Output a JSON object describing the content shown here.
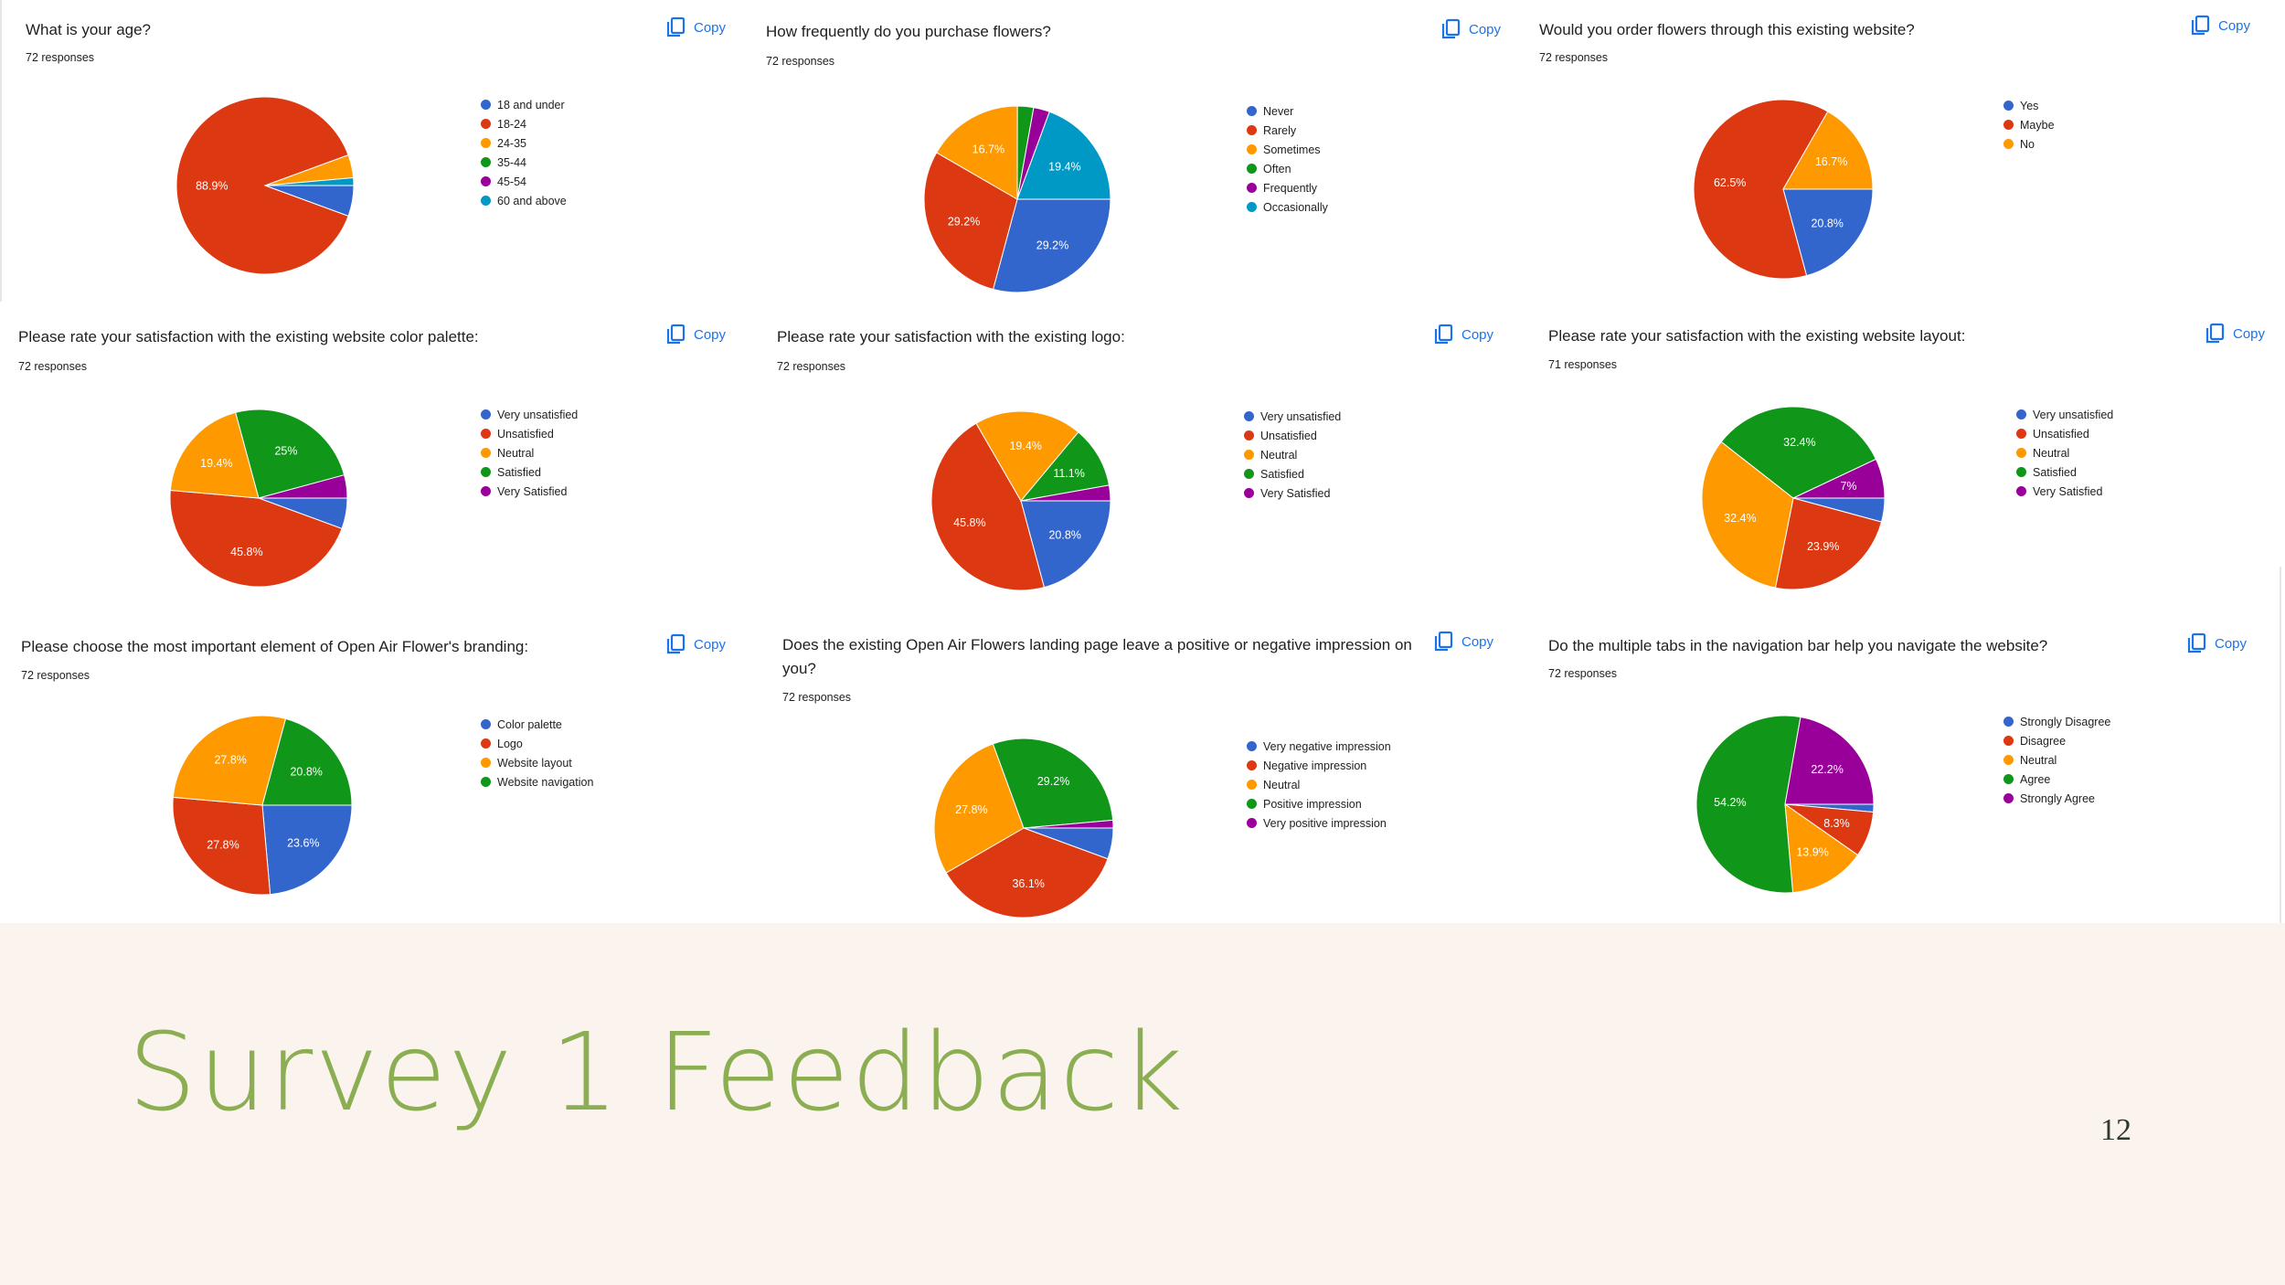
{
  "colors": {
    "blue": "#3366cc",
    "red": "#dc3912",
    "orange": "#ff9900",
    "green": "#109618",
    "purple": "#990099",
    "cyan": "#0099c6",
    "copy_blue": "#1a73e8",
    "title_green": "#8cae53",
    "page_bg": "#fbf4ee"
  },
  "copy_label": "Copy",
  "slide": {
    "title": "Survey 1 Feedback",
    "page_number": "12"
  },
  "chart_data": [
    {
      "type": "pie",
      "title": "What is your age?",
      "responses": "72 responses",
      "slices": [
        {
          "label": "18 and under",
          "value": 5.6,
          "color": "#3366cc"
        },
        {
          "label": "18-24",
          "value": 88.9,
          "color": "#dc3912",
          "data_label": "88.9%"
        },
        {
          "label": "24-35",
          "value": 4.2,
          "color": "#ff9900"
        },
        {
          "label": "35-44",
          "value": 0,
          "color": "#109618"
        },
        {
          "label": "45-54",
          "value": 0,
          "color": "#990099"
        },
        {
          "label": "60 and above",
          "value": 1.4,
          "color": "#0099c6"
        }
      ]
    },
    {
      "type": "pie",
      "title": "How frequently do you purchase flowers?",
      "responses": "72 responses",
      "slices": [
        {
          "label": "Never",
          "value": 29.2,
          "color": "#3366cc",
          "data_label": "29.2%"
        },
        {
          "label": "Rarely",
          "value": 29.2,
          "color": "#dc3912",
          "data_label": "29.2%"
        },
        {
          "label": "Sometimes",
          "value": 16.7,
          "color": "#ff9900",
          "data_label": "16.7%"
        },
        {
          "label": "Often",
          "value": 2.8,
          "color": "#109618"
        },
        {
          "label": "Frequently",
          "value": 2.8,
          "color": "#990099"
        },
        {
          "label": "Occasionally",
          "value": 19.4,
          "color": "#0099c6",
          "data_label": "19.4%"
        }
      ]
    },
    {
      "type": "pie",
      "title": "Would you order flowers through this existing website?",
      "responses": "72 responses",
      "slices": [
        {
          "label": "Yes",
          "value": 20.8,
          "color": "#3366cc",
          "data_label": "20.8%"
        },
        {
          "label": "Maybe",
          "value": 62.5,
          "color": "#dc3912",
          "data_label": "62.5%"
        },
        {
          "label": "No",
          "value": 16.7,
          "color": "#ff9900",
          "data_label": "16.7%"
        }
      ]
    },
    {
      "type": "pie",
      "title": "Please rate your satisfaction with the existing website color palette:",
      "responses": "72 responses",
      "slices": [
        {
          "label": "Very unsatisfied",
          "value": 5.6,
          "color": "#3366cc"
        },
        {
          "label": "Unsatisfied",
          "value": 45.8,
          "color": "#dc3912",
          "data_label": "45.8%"
        },
        {
          "label": "Neutral",
          "value": 19.4,
          "color": "#ff9900",
          "data_label": "19.4%"
        },
        {
          "label": "Satisfied",
          "value": 25,
          "color": "#109618",
          "data_label": "25%"
        },
        {
          "label": "Very Satisfied",
          "value": 4.2,
          "color": "#990099"
        }
      ]
    },
    {
      "type": "pie",
      "title": "Please rate your satisfaction with the existing logo:",
      "responses": "72 responses",
      "slices": [
        {
          "label": "Very unsatisfied",
          "value": 20.8,
          "color": "#3366cc",
          "data_label": "20.8%"
        },
        {
          "label": "Unsatisfied",
          "value": 45.8,
          "color": "#dc3912",
          "data_label": "45.8%"
        },
        {
          "label": "Neutral",
          "value": 19.4,
          "color": "#ff9900",
          "data_label": "19.4%"
        },
        {
          "label": "Satisfied",
          "value": 11.1,
          "color": "#109618",
          "data_label": "11.1%"
        },
        {
          "label": "Very Satisfied",
          "value": 2.8,
          "color": "#990099"
        }
      ]
    },
    {
      "type": "pie",
      "title": "Please rate your satisfaction with the existing website layout:",
      "responses": "71 responses",
      "slices": [
        {
          "label": "Very unsatisfied",
          "value": 4.2,
          "color": "#3366cc"
        },
        {
          "label": "Unsatisfied",
          "value": 23.9,
          "color": "#dc3912",
          "data_label": "23.9%"
        },
        {
          "label": "Neutral",
          "value": 32.4,
          "color": "#ff9900",
          "data_label": "32.4%"
        },
        {
          "label": "Satisfied",
          "value": 32.4,
          "color": "#109618",
          "data_label": "32.4%"
        },
        {
          "label": "Very Satisfied",
          "value": 7,
          "color": "#990099",
          "data_label": "7%"
        }
      ]
    },
    {
      "type": "pie",
      "title": "Please choose the most important element of Open Air Flower's branding:",
      "responses": "72 responses",
      "slices": [
        {
          "label": "Color palette",
          "value": 23.6,
          "color": "#3366cc",
          "data_label": "23.6%"
        },
        {
          "label": "Logo",
          "value": 27.8,
          "color": "#dc3912",
          "data_label": "27.8%"
        },
        {
          "label": "Website layout",
          "value": 27.8,
          "color": "#ff9900",
          "data_label": "27.8%"
        },
        {
          "label": "Website navigation",
          "value": 20.8,
          "color": "#109618",
          "data_label": "20.8%"
        }
      ]
    },
    {
      "type": "pie",
      "title": "Does the existing Open Air Flowers landing page leave a positive or negative impression on you?",
      "responses": "72 responses",
      "slices": [
        {
          "label": "Very negative impression",
          "value": 5.6,
          "color": "#3366cc"
        },
        {
          "label": "Negative impression",
          "value": 36.1,
          "color": "#dc3912",
          "data_label": "36.1%"
        },
        {
          "label": "Neutral",
          "value": 27.8,
          "color": "#ff9900",
          "data_label": "27.8%"
        },
        {
          "label": "Positive impression",
          "value": 29.2,
          "color": "#109618",
          "data_label": "29.2%"
        },
        {
          "label": "Very positive impression",
          "value": 1.4,
          "color": "#990099"
        }
      ]
    },
    {
      "type": "pie",
      "title": "Do the multiple tabs in the navigation bar help you navigate the website?",
      "responses": "72 responses",
      "slices": [
        {
          "label": "Strongly Disagree",
          "value": 1.4,
          "color": "#3366cc"
        },
        {
          "label": "Disagree",
          "value": 8.3,
          "color": "#dc3912",
          "data_label": "8.3%"
        },
        {
          "label": "Neutral",
          "value": 13.9,
          "color": "#ff9900",
          "data_label": "13.9%"
        },
        {
          "label": "Agree",
          "value": 54.2,
          "color": "#109618",
          "data_label": "54.2%"
        },
        {
          "label": "Strongly Agree",
          "value": 22.2,
          "color": "#990099",
          "data_label": "22.2%"
        }
      ]
    }
  ]
}
